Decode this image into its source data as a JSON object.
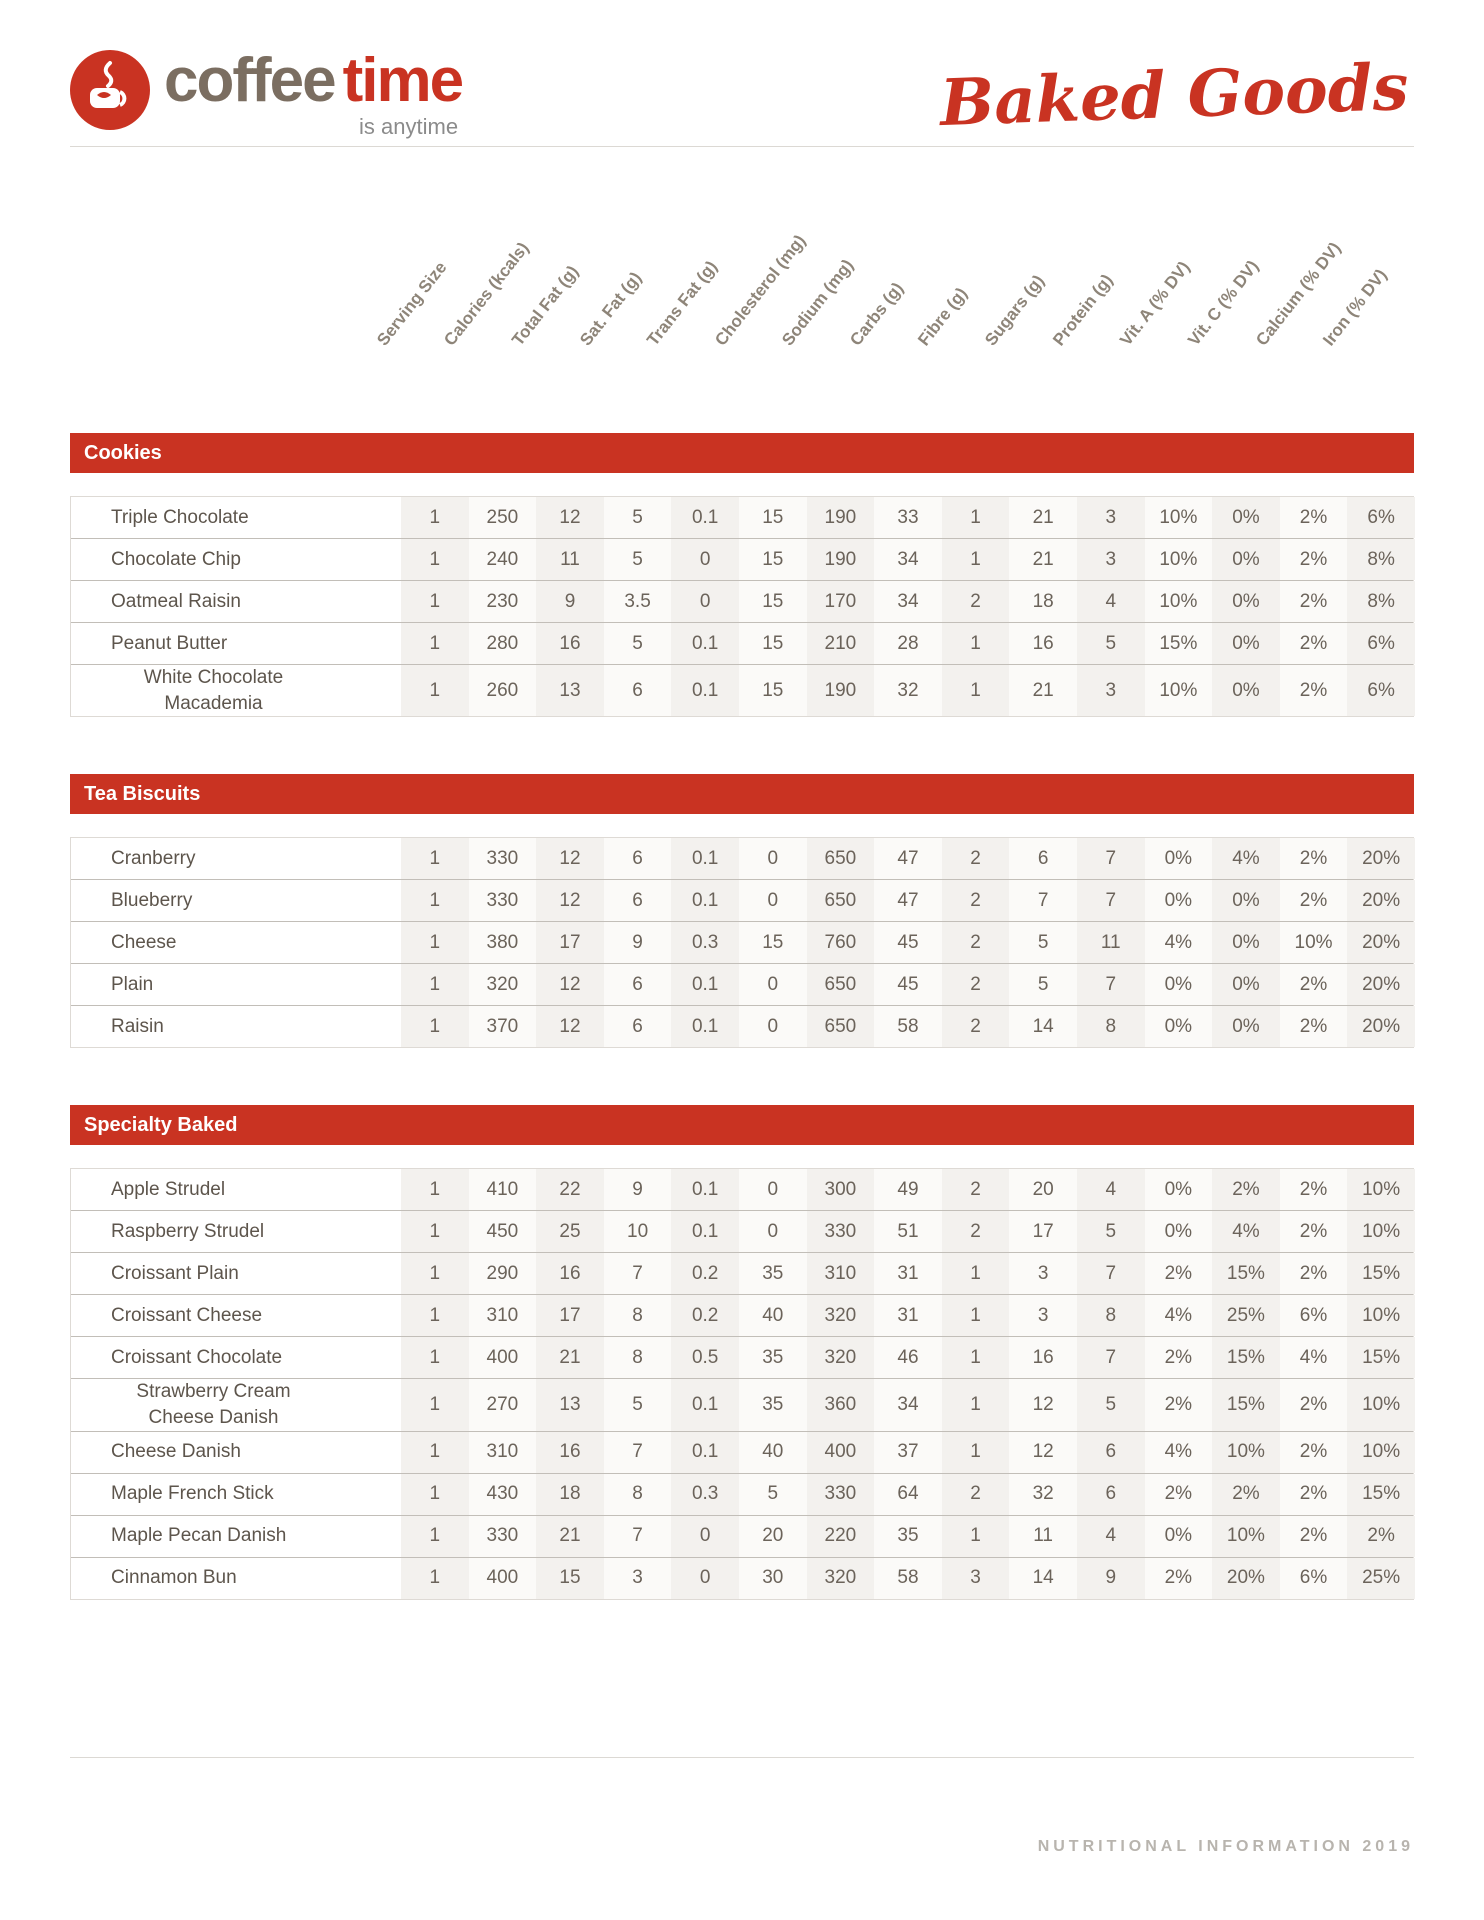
{
  "header": {
    "brand_coffee": "coffee",
    "brand_time": "time",
    "tagline": "is anytime",
    "page_title": "Baked Goods"
  },
  "columns": [
    "Serving Size",
    "Calories (kcals)",
    "Total Fat (g)",
    "Sat. Fat (g)",
    "Trans Fat (g)",
    "Cholesterol (mg)",
    "Sodium (mg)",
    "Carbs (g)",
    "Fibre (g)",
    "Sugars (g)",
    "Protein (g)",
    "Vit. A (% DV)",
    "Vit. C (% DV)",
    "Calcium (% DV)",
    "Iron (% DV)"
  ],
  "sections": [
    {
      "title": "Cookies",
      "rows": [
        {
          "name": "Triple Chocolate",
          "values": [
            "1",
            "250",
            "12",
            "5",
            "0.1",
            "15",
            "190",
            "33",
            "1",
            "21",
            "3",
            "10%",
            "0%",
            "2%",
            "6%"
          ]
        },
        {
          "name": "Chocolate Chip",
          "values": [
            "1",
            "240",
            "11",
            "5",
            "0",
            "15",
            "190",
            "34",
            "1",
            "21",
            "3",
            "10%",
            "0%",
            "2%",
            "8%"
          ]
        },
        {
          "name": "Oatmeal Raisin",
          "values": [
            "1",
            "230",
            "9",
            "3.5",
            "0",
            "15",
            "170",
            "34",
            "2",
            "18",
            "4",
            "10%",
            "0%",
            "2%",
            "8%"
          ]
        },
        {
          "name": "Peanut Butter",
          "values": [
            "1",
            "280",
            "16",
            "5",
            "0.1",
            "15",
            "210",
            "28",
            "1",
            "16",
            "5",
            "15%",
            "0%",
            "2%",
            "6%"
          ]
        },
        {
          "name": "White Chocolate Macademia",
          "values": [
            "1",
            "260",
            "13",
            "6",
            "0.1",
            "15",
            "190",
            "32",
            "1",
            "21",
            "3",
            "10%",
            "0%",
            "2%",
            "6%"
          ]
        }
      ]
    },
    {
      "title": "Tea Biscuits",
      "rows": [
        {
          "name": "Cranberry",
          "values": [
            "1",
            "330",
            "12",
            "6",
            "0.1",
            "0",
            "650",
            "47",
            "2",
            "6",
            "7",
            "0%",
            "4%",
            "2%",
            "20%"
          ]
        },
        {
          "name": "Blueberry",
          "values": [
            "1",
            "330",
            "12",
            "6",
            "0.1",
            "0",
            "650",
            "47",
            "2",
            "7",
            "7",
            "0%",
            "0%",
            "2%",
            "20%"
          ]
        },
        {
          "name": "Cheese",
          "values": [
            "1",
            "380",
            "17",
            "9",
            "0.3",
            "15",
            "760",
            "45",
            "2",
            "5",
            "11",
            "4%",
            "0%",
            "10%",
            "20%"
          ]
        },
        {
          "name": "Plain",
          "values": [
            "1",
            "320",
            "12",
            "6",
            "0.1",
            "0",
            "650",
            "45",
            "2",
            "5",
            "7",
            "0%",
            "0%",
            "2%",
            "20%"
          ]
        },
        {
          "name": "Raisin",
          "values": [
            "1",
            "370",
            "12",
            "6",
            "0.1",
            "0",
            "650",
            "58",
            "2",
            "14",
            "8",
            "0%",
            "0%",
            "2%",
            "20%"
          ]
        }
      ]
    },
    {
      "title": "Specialty Baked",
      "rows": [
        {
          "name": "Apple Strudel",
          "values": [
            "1",
            "410",
            "22",
            "9",
            "0.1",
            "0",
            "300",
            "49",
            "2",
            "20",
            "4",
            "0%",
            "2%",
            "2%",
            "10%"
          ]
        },
        {
          "name": "Raspberry Strudel",
          "values": [
            "1",
            "450",
            "25",
            "10",
            "0.1",
            "0",
            "330",
            "51",
            "2",
            "17",
            "5",
            "0%",
            "4%",
            "2%",
            "10%"
          ]
        },
        {
          "name": "Croissant Plain",
          "values": [
            "1",
            "290",
            "16",
            "7",
            "0.2",
            "35",
            "310",
            "31",
            "1",
            "3",
            "7",
            "2%",
            "15%",
            "2%",
            "15%"
          ]
        },
        {
          "name": "Croissant Cheese",
          "values": [
            "1",
            "310",
            "17",
            "8",
            "0.2",
            "40",
            "320",
            "31",
            "1",
            "3",
            "8",
            "4%",
            "25%",
            "6%",
            "10%"
          ]
        },
        {
          "name": "Croissant Chocolate",
          "values": [
            "1",
            "400",
            "21",
            "8",
            "0.5",
            "35",
            "320",
            "46",
            "1",
            "16",
            "7",
            "2%",
            "15%",
            "4%",
            "15%"
          ]
        },
        {
          "name": "Strawberry Cream Cheese Danish",
          "values": [
            "1",
            "270",
            "13",
            "5",
            "0.1",
            "35",
            "360",
            "34",
            "1",
            "12",
            "5",
            "2%",
            "15%",
            "2%",
            "10%"
          ]
        },
        {
          "name": "Cheese Danish",
          "values": [
            "1",
            "310",
            "16",
            "7",
            "0.1",
            "40",
            "400",
            "37",
            "1",
            "12",
            "6",
            "4%",
            "10%",
            "2%",
            "10%"
          ]
        },
        {
          "name": "Maple French Stick",
          "values": [
            "1",
            "430",
            "18",
            "8",
            "0.3",
            "5",
            "330",
            "64",
            "2",
            "32",
            "6",
            "2%",
            "2%",
            "2%",
            "15%"
          ]
        },
        {
          "name": "Maple Pecan Danish",
          "values": [
            "1",
            "330",
            "21",
            "7",
            "0",
            "20",
            "220",
            "35",
            "1",
            "11",
            "4",
            "0%",
            "10%",
            "2%",
            "2%"
          ]
        },
        {
          "name": "Cinnamon Bun",
          "values": [
            "1",
            "400",
            "15",
            "3",
            "0",
            "30",
            "320",
            "58",
            "3",
            "14",
            "9",
            "2%",
            "20%",
            "6%",
            "25%"
          ]
        }
      ]
    }
  ],
  "footer": {
    "text": "NUTRITIONAL INFORMATION 2019"
  },
  "colors": {
    "accent_red": "#c93322",
    "brand_brown": "#7b6e61",
    "header_label_gray": "#8e8579",
    "body_text": "#6b635a",
    "stripe_dark": "#f3f1ee",
    "stripe_light": "#fbfaf8",
    "footer_gray": "#b8b4ae"
  }
}
